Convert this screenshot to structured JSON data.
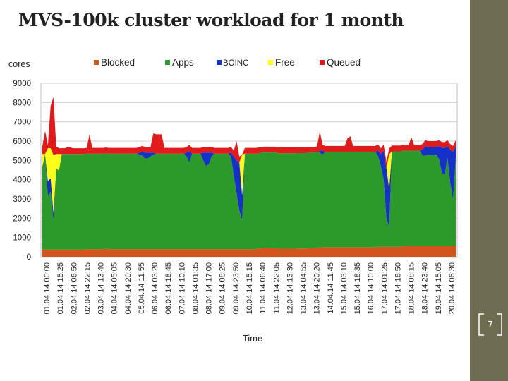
{
  "slide": {
    "title": "MVS-100k cluster workload for 1 month",
    "page_number": "7",
    "sidebar_color": "#6e6c50"
  },
  "chart_data": {
    "type": "area",
    "stacked": true,
    "ylabel": "cores",
    "xlabel": "Time",
    "ylim": [
      0,
      9000
    ],
    "yticks": [
      0,
      1000,
      2000,
      3000,
      4000,
      5000,
      6000,
      7000,
      8000,
      9000
    ],
    "grid": true,
    "legend_position": "top",
    "x_tick_labels": [
      "01.04.14 00:00",
      "01.04.14 15:25",
      "02.04.14 06:50",
      "02.04.14 22:15",
      "03.04.14 13:40",
      "04.04.14 05:05",
      "04.04.14 20:30",
      "05.04.14 11:55",
      "06.04.14 03:20",
      "06.04.14 18:45",
      "07.04.14 10:10",
      "08.04.14 01:35",
      "08.04.14 17:00",
      "09.04.14 08:25",
      "09.04.14 23:50",
      "10.04.14 15:15",
      "11.04.14 06:40",
      "11.04.14 22:05",
      "12.04.14 13:30",
      "13.04.14 04:55",
      "13.04.14 20:20",
      "14.04.14 11:45",
      "15.04.14 03:10",
      "15.04.14 18:35",
      "16.04.14 10:00",
      "17.04.14 01:25",
      "17.04.14 16:50",
      "18.04.14 08:15",
      "18.04.14 23:40",
      "19.04.14 15:05",
      "20.04.14 06:30"
    ],
    "series": [
      {
        "name": "Blocked",
        "color": "#d4551c",
        "values": [
          380,
          380,
          380,
          380,
          380,
          380,
          380,
          380,
          380,
          380,
          380,
          380,
          380,
          380,
          380,
          380,
          400,
          400,
          400,
          400,
          400,
          400,
          400,
          420,
          400,
          400,
          400,
          400,
          400,
          400,
          400,
          400,
          400,
          400,
          400,
          400,
          400,
          400,
          400,
          400,
          400,
          400,
          400,
          400,
          400,
          400,
          400,
          400,
          400,
          400,
          400,
          400,
          400,
          400,
          400,
          400,
          400,
          400,
          400,
          400,
          400,
          400,
          400,
          400,
          400,
          400,
          400,
          400,
          400,
          400,
          400,
          400,
          400,
          400,
          400,
          400,
          400,
          400,
          420,
          450,
          460,
          460,
          460,
          460,
          460,
          420,
          420,
          420,
          420,
          420,
          420,
          420,
          430,
          430,
          430,
          430,
          450,
          450,
          450,
          480,
          500,
          500,
          500,
          500,
          500,
          500,
          500,
          500,
          500,
          500,
          500,
          500,
          500,
          500,
          500,
          500,
          500,
          500,
          500,
          500,
          500,
          520,
          520,
          520,
          520,
          520,
          520,
          520,
          520,
          520,
          550,
          550,
          550,
          550,
          550,
          550,
          550,
          550,
          550,
          550,
          550,
          550,
          550,
          550,
          550,
          550,
          550,
          550,
          550,
          550
        ]
      },
      {
        "name": "Apps",
        "color": "#2b9a2b",
        "values": [
          4300,
          4950,
          2750,
          3000,
          1500,
          4200,
          4100,
          4950,
          4950,
          4950,
          4950,
          4950,
          4950,
          4950,
          4950,
          4950,
          4950,
          4950,
          4950,
          4950,
          4950,
          4950,
          4950,
          4950,
          4950,
          4950,
          4950,
          4950,
          4950,
          4950,
          4950,
          4950,
          4950,
          4950,
          4950,
          4900,
          4850,
          4700,
          4700,
          4800,
          4900,
          4950,
          4950,
          4950,
          4950,
          4950,
          4950,
          4950,
          4950,
          4950,
          4950,
          4950,
          4800,
          4500,
          4950,
          4950,
          4950,
          4950,
          4600,
          4300,
          4400,
          4800,
          4950,
          4950,
          4950,
          4950,
          4950,
          4950,
          4800,
          3800,
          2900,
          2000,
          1500,
          4950,
          4950,
          4950,
          4950,
          4950,
          4950,
          4950,
          4950,
          4950,
          4950,
          4950,
          4950,
          4950,
          4950,
          4950,
          4950,
          4950,
          4950,
          4950,
          4950,
          4950,
          4950,
          4950,
          4950,
          4950,
          4950,
          4950,
          4900,
          4800,
          4950,
          4950,
          4950,
          4950,
          4950,
          4950,
          4950,
          4950,
          4950,
          4950,
          4950,
          4950,
          4950,
          4950,
          4950,
          4950,
          4950,
          4950,
          4950,
          4700,
          4200,
          3500,
          1500,
          1000,
          4950,
          4950,
          4950,
          4950,
          4950,
          4950,
          4950,
          4950,
          4950,
          4950,
          4950,
          4700,
          4700,
          4750,
          4750,
          4750,
          4750,
          4500,
          3800,
          3700,
          4600,
          3300,
          2400,
          4600
        ]
      },
      {
        "name": "BOINC",
        "color": "#1531c8",
        "values": [
          0,
          0,
          800,
          700,
          400,
          0,
          0,
          0,
          0,
          0,
          0,
          0,
          0,
          0,
          0,
          0,
          0,
          0,
          0,
          0,
          0,
          0,
          0,
          0,
          0,
          0,
          0,
          0,
          0,
          0,
          0,
          0,
          0,
          0,
          0,
          100,
          200,
          300,
          300,
          200,
          100,
          0,
          0,
          0,
          0,
          0,
          0,
          0,
          0,
          0,
          0,
          0,
          200,
          600,
          0,
          0,
          0,
          0,
          400,
          700,
          600,
          200,
          0,
          0,
          0,
          0,
          0,
          0,
          200,
          1000,
          1700,
          2500,
          1300,
          0,
          0,
          0,
          0,
          0,
          0,
          0,
          0,
          0,
          0,
          0,
          0,
          0,
          0,
          0,
          0,
          0,
          0,
          0,
          0,
          0,
          0,
          0,
          0,
          0,
          0,
          0,
          100,
          200,
          0,
          0,
          0,
          0,
          0,
          0,
          0,
          0,
          0,
          0,
          0,
          0,
          0,
          0,
          0,
          0,
          0,
          0,
          0,
          300,
          600,
          1500,
          2600,
          2000,
          0,
          0,
          0,
          0,
          0,
          0,
          0,
          0,
          0,
          0,
          0,
          300,
          500,
          400,
          400,
          400,
          400,
          700,
          1300,
          1400,
          600,
          1700,
          2500,
          600
        ]
      },
      {
        "name": "Free",
        "color": "#ffff1a",
        "values": [
          650,
          0,
          1700,
          1550,
          3000,
          750,
          850,
          0,
          0,
          0,
          0,
          0,
          0,
          0,
          0,
          0,
          0,
          0,
          0,
          0,
          0,
          0,
          0,
          0,
          0,
          0,
          0,
          0,
          0,
          0,
          0,
          0,
          0,
          0,
          0,
          0,
          0,
          0,
          0,
          0,
          0,
          0,
          0,
          0,
          0,
          0,
          0,
          0,
          0,
          0,
          0,
          0,
          0,
          0,
          0,
          0,
          0,
          0,
          0,
          0,
          0,
          0,
          0,
          0,
          0,
          0,
          0,
          0,
          0,
          0,
          0,
          0,
          2100,
          0,
          0,
          0,
          0,
          0,
          0,
          0,
          0,
          0,
          0,
          0,
          0,
          0,
          0,
          0,
          0,
          0,
          0,
          0,
          0,
          0,
          0,
          0,
          0,
          0,
          0,
          0,
          0,
          0,
          0,
          0,
          0,
          0,
          0,
          0,
          0,
          0,
          0,
          0,
          0,
          0,
          0,
          0,
          0,
          0,
          0,
          0,
          0,
          0,
          0,
          0,
          0,
          1800,
          0,
          0,
          0,
          0,
          0,
          0,
          0,
          0,
          0,
          0,
          0,
          0,
          0,
          0,
          0,
          0,
          0,
          0,
          0,
          0,
          0,
          0,
          0,
          0
        ]
      },
      {
        "name": "Queued",
        "color": "#e01b1b",
        "values": [
          400,
          1200,
          150,
          2200,
          3000,
          400,
          300,
          300,
          300,
          350,
          350,
          300,
          300,
          300,
          300,
          300,
          300,
          1000,
          300,
          300,
          300,
          300,
          300,
          300,
          300,
          300,
          300,
          300,
          300,
          300,
          300,
          300,
          300,
          300,
          300,
          300,
          300,
          300,
          300,
          300,
          1000,
          1000,
          1000,
          1000,
          300,
          300,
          300,
          300,
          300,
          300,
          300,
          300,
          300,
          300,
          300,
          300,
          300,
          300,
          300,
          300,
          300,
          300,
          300,
          300,
          300,
          300,
          300,
          300,
          300,
          300,
          1000,
          300,
          0,
          300,
          300,
          300,
          300,
          300,
          300,
          300,
          300,
          300,
          300,
          300,
          300,
          300,
          300,
          300,
          300,
          300,
          300,
          300,
          300,
          300,
          300,
          300,
          300,
          300,
          300,
          300,
          1000,
          300,
          300,
          300,
          300,
          300,
          300,
          300,
          300,
          300,
          700,
          800,
          300,
          300,
          300,
          300,
          300,
          300,
          300,
          300,
          300,
          300,
          300,
          300,
          300,
          300,
          300,
          300,
          300,
          300,
          300,
          300,
          300,
          700,
          300,
          300,
          300,
          300,
          300,
          300,
          300,
          300,
          300,
          300,
          300,
          300,
          300,
          300,
          300,
          300,
          300,
          300,
          300,
          300
        ]
      }
    ]
  }
}
